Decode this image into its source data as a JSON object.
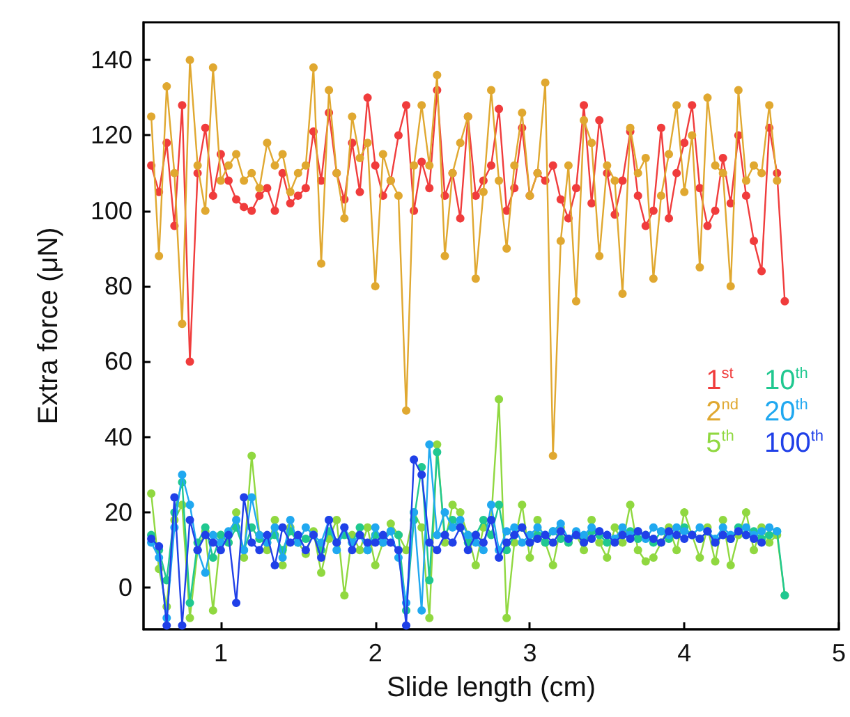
{
  "chart_data": {
    "type": "line",
    "xlabel": "Slide length (cm)",
    "ylabel": "Extra force (μN)",
    "xlim": [
      0.5,
      5
    ],
    "xticks": [
      1,
      2,
      3,
      4,
      5
    ],
    "ylim": [
      -11,
      150
    ],
    "yticks": [
      0,
      20,
      40,
      60,
      80,
      100,
      120,
      140
    ],
    "grid": false,
    "legend": "right",
    "marker": "circle",
    "line_style": "solid",
    "x": [
      0.55,
      0.6,
      0.65,
      0.7,
      0.75,
      0.8,
      0.85,
      0.9,
      0.95,
      1.0,
      1.05,
      1.1,
      1.15,
      1.2,
      1.25,
      1.3,
      1.35,
      1.4,
      1.45,
      1.5,
      1.55,
      1.6,
      1.65,
      1.7,
      1.75,
      1.8,
      1.85,
      1.9,
      1.95,
      2.0,
      2.05,
      2.1,
      2.15,
      2.2,
      2.25,
      2.3,
      2.35,
      2.4,
      2.45,
      2.5,
      2.55,
      2.6,
      2.65,
      2.7,
      2.75,
      2.8,
      2.85,
      2.9,
      2.95,
      3.0,
      3.05,
      3.1,
      3.15,
      3.2,
      3.25,
      3.3,
      3.35,
      3.4,
      3.45,
      3.5,
      3.55,
      3.6,
      3.65,
      3.7,
      3.75,
      3.8,
      3.85,
      3.9,
      3.95,
      4.0,
      4.05,
      4.1,
      4.15,
      4.2,
      4.25,
      4.3,
      4.35,
      4.4,
      4.45,
      4.5,
      4.55,
      4.6,
      4.65
    ],
    "series": [
      {
        "name": "1$^{st}$",
        "color": "#f03c3c",
        "values": [
          112,
          105,
          118,
          96,
          128,
          60,
          110,
          122,
          104,
          115,
          108,
          103,
          101,
          100,
          104,
          106,
          100,
          110,
          102,
          104,
          106,
          121,
          108,
          126,
          110,
          103,
          118,
          105,
          130,
          112,
          104,
          108,
          120,
          128,
          100,
          113,
          106,
          132,
          104,
          110,
          98,
          125,
          104,
          108,
          112,
          127,
          100,
          106,
          122,
          104,
          110,
          108,
          112,
          103,
          98,
          106,
          128,
          102,
          124,
          110,
          99,
          108,
          121,
          104,
          96,
          100,
          122,
          98,
          110,
          118,
          128,
          106,
          96,
          100,
          114,
          102,
          120,
          104,
          92,
          84,
          122,
          110,
          76
        ]
      },
      {
        "name": "2$^{nd}$",
        "color": "#e0a830",
        "values": [
          125,
          88,
          133,
          110,
          70,
          140,
          112,
          100,
          138,
          108,
          112,
          115,
          108,
          110,
          106,
          118,
          112,
          115,
          105,
          110,
          112,
          138,
          86,
          132,
          110,
          98,
          125,
          114,
          118,
          80,
          115,
          108,
          104,
          47,
          112,
          128,
          112,
          136,
          88,
          110,
          118,
          125,
          82,
          105,
          132,
          108,
          90,
          112,
          126,
          104,
          110,
          134,
          35,
          92,
          112,
          76,
          124,
          118,
          88,
          112,
          108,
          78,
          122,
          110,
          114,
          82,
          104,
          115,
          128,
          105,
          120,
          85,
          130,
          112,
          110,
          80,
          132,
          108,
          112,
          110,
          128,
          108,
          null
        ]
      },
      {
        "name": "5$^{th}$",
        "color": "#90d840",
        "values": [
          25,
          5,
          -5,
          18,
          22,
          -8,
          10,
          15,
          -6,
          14,
          12,
          20,
          8,
          35,
          14,
          10,
          18,
          6,
          16,
          12,
          9,
          15,
          4,
          13,
          18,
          -2,
          14,
          10,
          16,
          6,
          12,
          17,
          14,
          10,
          20,
          16,
          -8,
          38,
          12,
          22,
          20,
          14,
          6,
          16,
          18,
          50,
          -8,
          12,
          22,
          8,
          18,
          12,
          6,
          16,
          12,
          14,
          10,
          18,
          12,
          8,
          16,
          12,
          22,
          10,
          7,
          8,
          12,
          16,
          10,
          20,
          14,
          8,
          16,
          7,
          18,
          6,
          14,
          20,
          10,
          16,
          12,
          14,
          -2
        ]
      },
      {
        "name": "10$^{th}$",
        "color": "#20c890",
        "values": [
          14,
          10,
          2,
          20,
          28,
          -4,
          12,
          16,
          8,
          14,
          12,
          16,
          10,
          16,
          13,
          12,
          14,
          10,
          15,
          12,
          13,
          14,
          10,
          15,
          12,
          14,
          12,
          16,
          10,
          14,
          12,
          15,
          14,
          -6,
          18,
          32,
          2,
          36,
          14,
          18,
          16,
          12,
          14,
          18,
          14,
          22,
          10,
          14,
          16,
          12,
          14,
          12,
          15,
          13,
          12,
          14,
          13,
          15,
          14,
          12,
          13,
          14,
          15,
          13,
          14,
          12,
          15,
          13,
          14,
          16,
          14,
          13,
          15,
          12,
          14,
          13,
          16,
          14,
          15,
          13,
          14,
          15,
          -2
        ]
      },
      {
        "name": "20$^{th}$",
        "color": "#20a8f0",
        "values": [
          12,
          8,
          -8,
          16,
          30,
          22,
          10,
          4,
          14,
          12,
          15,
          18,
          10,
          24,
          14,
          12,
          16,
          8,
          18,
          12,
          16,
          14,
          12,
          18,
          10,
          16,
          12,
          14,
          10,
          16,
          12,
          15,
          8,
          -4,
          20,
          -6,
          38,
          14,
          20,
          16,
          18,
          14,
          12,
          10,
          22,
          10,
          15,
          16,
          12,
          14,
          16,
          14,
          15,
          17,
          13,
          15,
          14,
          16,
          15,
          14,
          13,
          16,
          14,
          15,
          13,
          16,
          15,
          14,
          16,
          15,
          14,
          16,
          15,
          13,
          16,
          14,
          15,
          16,
          14,
          15,
          16,
          15,
          null
        ]
      },
      {
        "name": "100$^{th}$",
        "color": "#2040e8",
        "values": [
          13,
          11,
          -10,
          24,
          -10,
          18,
          10,
          14,
          12,
          10,
          14,
          -4,
          24,
          12,
          10,
          14,
          6,
          16,
          12,
          14,
          10,
          14,
          8,
          18,
          12,
          16,
          10,
          14,
          12,
          12,
          14,
          12,
          10,
          -10,
          34,
          30,
          12,
          10,
          14,
          12,
          16,
          10,
          14,
          12,
          18,
          8,
          12,
          14,
          16,
          12,
          13,
          14,
          12,
          15,
          13,
          14,
          12,
          13,
          15,
          14,
          12,
          14,
          13,
          15,
          14,
          13,
          12,
          15,
          14,
          13,
          14,
          13,
          15,
          12,
          14,
          13,
          15,
          14,
          13,
          12,
          null,
          null,
          null
        ]
      }
    ]
  }
}
